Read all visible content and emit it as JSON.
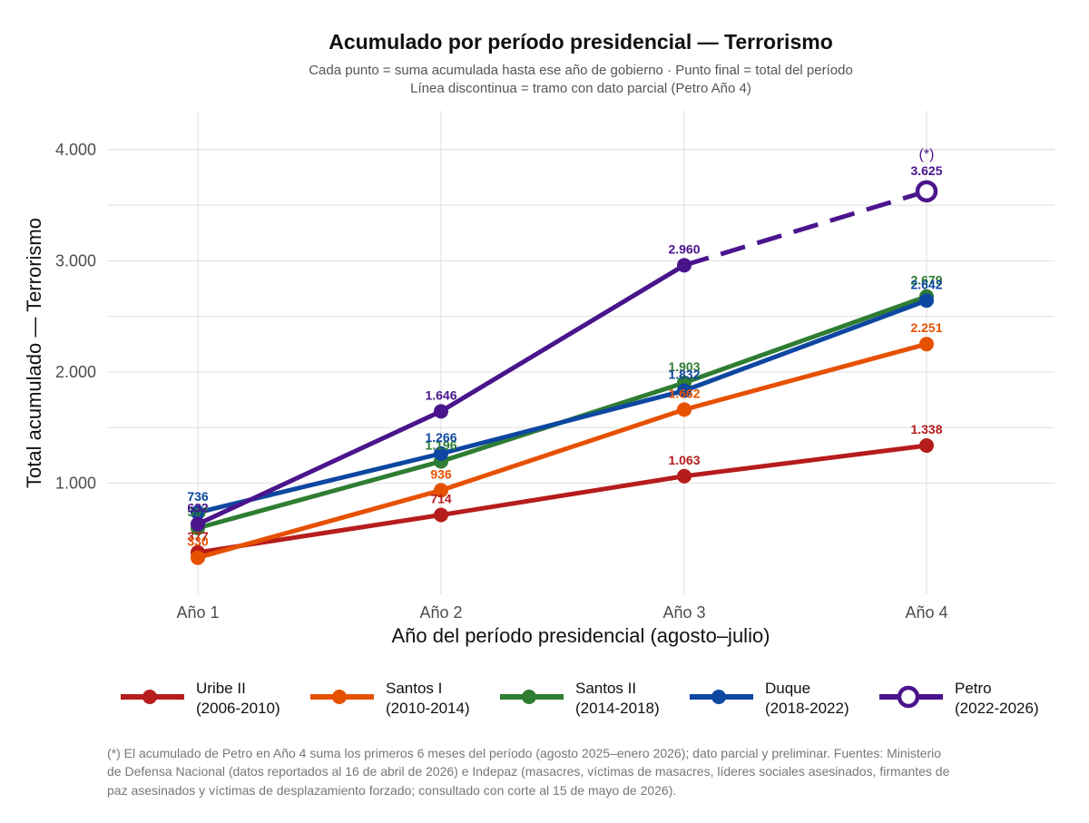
{
  "chart_data": {
    "type": "line",
    "title": "Acumulado por período presidencial — Terrorismo",
    "subtitle_lines": [
      "Cada punto = suma acumulada hasta ese año de gobierno  ·  Punto final = total del período",
      "Línea discontinua = tramo con dato parcial (Petro Año 4)"
    ],
    "xlabel": "Año del período presidencial (agosto–julio)",
    "ylabel": "Total acumulado  —  Terrorismo",
    "categories": [
      "Año 1",
      "Año 2",
      "Año 3",
      "Año 4"
    ],
    "ylim": [
      0,
      4350
    ],
    "yticks": [
      1000,
      2000,
      3000,
      4000
    ],
    "ytick_labels": [
      "1.000",
      "2.000",
      "3.000",
      "4.000"
    ],
    "grid": true,
    "legend_position": "bottom",
    "series": [
      {
        "name": "Uribe II (2006-2010)",
        "legend_lines": [
          "Uribe II",
          "(2006-2010)"
        ],
        "color": "#b71c1c",
        "values": [
          377,
          714,
          1063,
          1338
        ],
        "labels": [
          "377",
          "714",
          "1.063",
          "1.338"
        ],
        "partial_last": false
      },
      {
        "name": "Santos I (2010-2014)",
        "legend_lines": [
          "Santos I",
          "(2010-2014)"
        ],
        "color": "#e65100",
        "values": [
          330,
          936,
          1662,
          2251
        ],
        "labels": [
          "330",
          "936",
          "1.662",
          "2.251"
        ],
        "partial_last": false
      },
      {
        "name": "Santos II (2014-2018)",
        "legend_lines": [
          "Santos II",
          "(2014-2018)"
        ],
        "color": "#2e7d32",
        "values": [
          597,
          1196,
          1903,
          2679
        ],
        "labels": [
          "597",
          "1.196",
          "1.903",
          "2.679"
        ],
        "partial_last": false
      },
      {
        "name": "Duque (2018-2022)",
        "legend_lines": [
          "Duque",
          "(2018-2022)"
        ],
        "color": "#0d47a1",
        "values": [
          736,
          1266,
          1832,
          2642
        ],
        "labels": [
          "736",
          "1.266",
          "1.832",
          "2.642"
        ],
        "partial_last": false
      },
      {
        "name": "Petro (2022-2026)",
        "legend_lines": [
          "Petro",
          "(2022-2026)"
        ],
        "color": "#4a148c",
        "values": [
          632,
          1646,
          2960,
          3625
        ],
        "labels": [
          "632",
          "1.646",
          "2.960",
          "3.625"
        ],
        "partial_last": true,
        "partial_marker_label": "(*)"
      }
    ],
    "caption_lines": [
      "(*) El acumulado de Petro en Año 4 suma los primeros 6 meses del período (agosto 2025–enero 2026); dato parcial y preliminar. Fuentes: Ministerio",
      "de Defensa Nacional (datos reportados al 16 de abril de 2026) e Indepaz (masacres, víctimas de masacres, líderes sociales asesinados, firmantes de",
      "paz asesinados y víctimas de desplazamiento forzado; consultado con corte al 15 de mayo de 2026)."
    ]
  }
}
